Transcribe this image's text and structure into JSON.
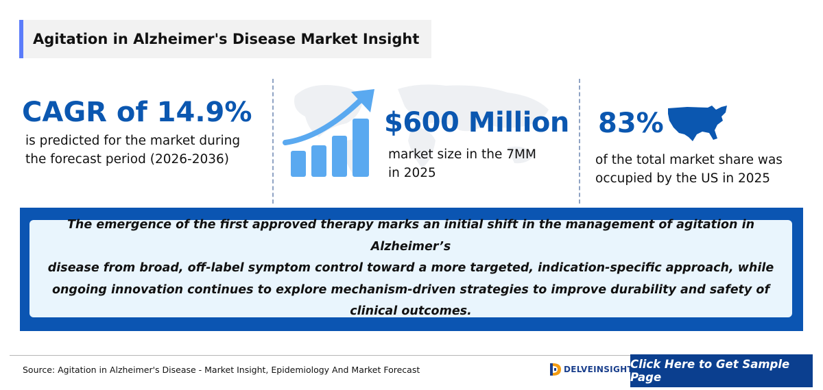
{
  "header": {
    "title": "Agitation in Alzheimer's Disease Market Insight"
  },
  "stats": [
    {
      "value": "CAGR of 14.9%",
      "line1": "is predicted for the market during",
      "line2": "the forecast period (2026-2036)"
    },
    {
      "value": "$600 Million",
      "line1": "market size in the 7MM",
      "line2": "in 2025",
      "icon": "growth-chart-icon"
    },
    {
      "value": "83%",
      "line1": "of the total market share was",
      "line2": "occupied by the US in 2025",
      "icon": "us-map-icon"
    }
  ],
  "quote": {
    "line1": "The emergence of the first approved therapy marks an initial shift in the management of agitation in Alzheimer’s",
    "line2": "disease from broad, off-label symptom control toward a more targeted, indication-specific approach, while",
    "line3": "ongoing innovation continues to explore mechanism-driven strategies to improve durability and safety of",
    "line4": "clinical outcomes."
  },
  "footer": {
    "source": "Source: Agitation in Alzheimer's Disease - Market Insight, Epidemiology And Market Forecast",
    "brand": "DELVEINSIGHT",
    "cta": "Click Here to Get Sample Page"
  },
  "colors": {
    "accent": "#0b57b0",
    "quote_bg": "#0b55b2",
    "quote_inner": "#e9f5fd",
    "cta_bg": "#0b3f8f",
    "title_bar": "#5b7cfa"
  }
}
